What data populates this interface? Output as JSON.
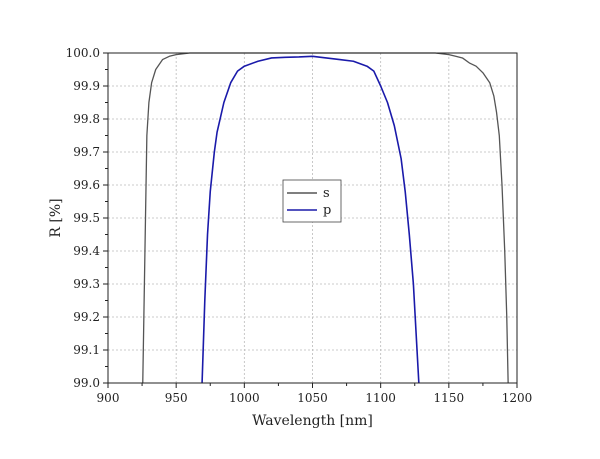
{
  "chart_data": {
    "type": "line",
    "title": "",
    "xlabel": "Wavelength [nm]",
    "ylabel": "R [%]",
    "xlim": [
      900,
      1200
    ],
    "ylim": [
      99.0,
      100.0
    ],
    "xticks": [
      900,
      950,
      1000,
      1050,
      1100,
      1150,
      1200
    ],
    "xtick_labels": [
      "900",
      "950",
      "1000",
      "1050",
      "1100",
      "1150",
      "1200"
    ],
    "yticks": [
      99.0,
      99.1,
      99.2,
      99.3,
      99.4,
      99.5,
      99.6,
      99.7,
      99.8,
      99.9,
      100.0
    ],
    "ytick_labels": [
      "99.0",
      "99.1",
      "99.2",
      "99.3",
      "99.4",
      "99.5",
      "99.6",
      "99.7",
      "99.8",
      "99.9",
      "100.0"
    ],
    "grid": true,
    "legend_position": "center",
    "series": [
      {
        "name": "s",
        "color": "#555555",
        "x": [
          925.5,
          926.5,
          927.5,
          928.5,
          930,
          932,
          935,
          940,
          945,
          950,
          960,
          980,
          1000,
          1050,
          1100,
          1120,
          1140,
          1150,
          1155,
          1160,
          1165,
          1170,
          1175,
          1180,
          1183,
          1185,
          1187,
          1189,
          1191,
          1192.5,
          1193.5
        ],
        "y": [
          99.0,
          99.25,
          99.5,
          99.75,
          99.85,
          99.91,
          99.95,
          99.98,
          99.99,
          99.995,
          100.0,
          100.0,
          100.0,
          100.0,
          100.0,
          100.0,
          100.0,
          99.995,
          99.99,
          99.985,
          99.97,
          99.96,
          99.94,
          99.91,
          99.87,
          99.82,
          99.75,
          99.6,
          99.4,
          99.2,
          99.0
        ]
      },
      {
        "name": "p",
        "color": "#1a1aaa",
        "x": [
          969,
          971,
          973,
          975,
          978,
          980,
          985,
          990,
          995,
          1000,
          1010,
          1020,
          1030,
          1040,
          1050,
          1060,
          1070,
          1080,
          1090,
          1095,
          1100,
          1105,
          1110,
          1115,
          1118,
          1121,
          1124,
          1126,
          1128
        ],
        "y": [
          99.0,
          99.25,
          99.45,
          99.58,
          99.7,
          99.76,
          99.85,
          99.91,
          99.945,
          99.96,
          99.975,
          99.985,
          99.987,
          99.988,
          99.99,
          99.985,
          99.98,
          99.975,
          99.96,
          99.945,
          99.9,
          99.85,
          99.78,
          99.68,
          99.58,
          99.45,
          99.3,
          99.15,
          99.0
        ]
      }
    ]
  }
}
